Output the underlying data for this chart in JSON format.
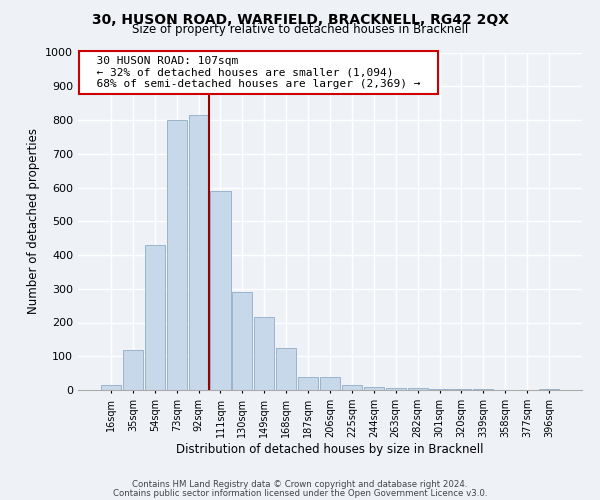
{
  "title": "30, HUSON ROAD, WARFIELD, BRACKNELL, RG42 2QX",
  "subtitle": "Size of property relative to detached houses in Bracknell",
  "xlabel": "Distribution of detached houses by size in Bracknell",
  "ylabel": "Number of detached properties",
  "bar_labels": [
    "16sqm",
    "35sqm",
    "54sqm",
    "73sqm",
    "92sqm",
    "111sqm",
    "130sqm",
    "149sqm",
    "168sqm",
    "187sqm",
    "206sqm",
    "225sqm",
    "244sqm",
    "263sqm",
    "282sqm",
    "301sqm",
    "320sqm",
    "339sqm",
    "358sqm",
    "377sqm",
    "396sqm"
  ],
  "bar_values": [
    15,
    120,
    430,
    800,
    815,
    590,
    290,
    215,
    125,
    40,
    40,
    15,
    10,
    5,
    5,
    3,
    2,
    2,
    1,
    1,
    2
  ],
  "bar_color": "#c8d8eb",
  "bar_edge_color": "#99b4cc",
  "vline_color": "#990000",
  "annotation_title": "30 HUSON ROAD: 107sqm",
  "annotation_line1": "← 32% of detached houses are smaller (1,094)",
  "annotation_line2": "68% of semi-detached houses are larger (2,369) →",
  "annotation_box_color": "#ffffff",
  "annotation_box_edge": "#cc0000",
  "ylim": [
    0,
    1000
  ],
  "yticks": [
    0,
    100,
    200,
    300,
    400,
    500,
    600,
    700,
    800,
    900,
    1000
  ],
  "footer1": "Contains HM Land Registry data © Crown copyright and database right 2024.",
  "footer2": "Contains public sector information licensed under the Open Government Licence v3.0.",
  "background_color": "#eef2f7",
  "plot_background": "#eef2f7",
  "grid_color": "#ffffff"
}
